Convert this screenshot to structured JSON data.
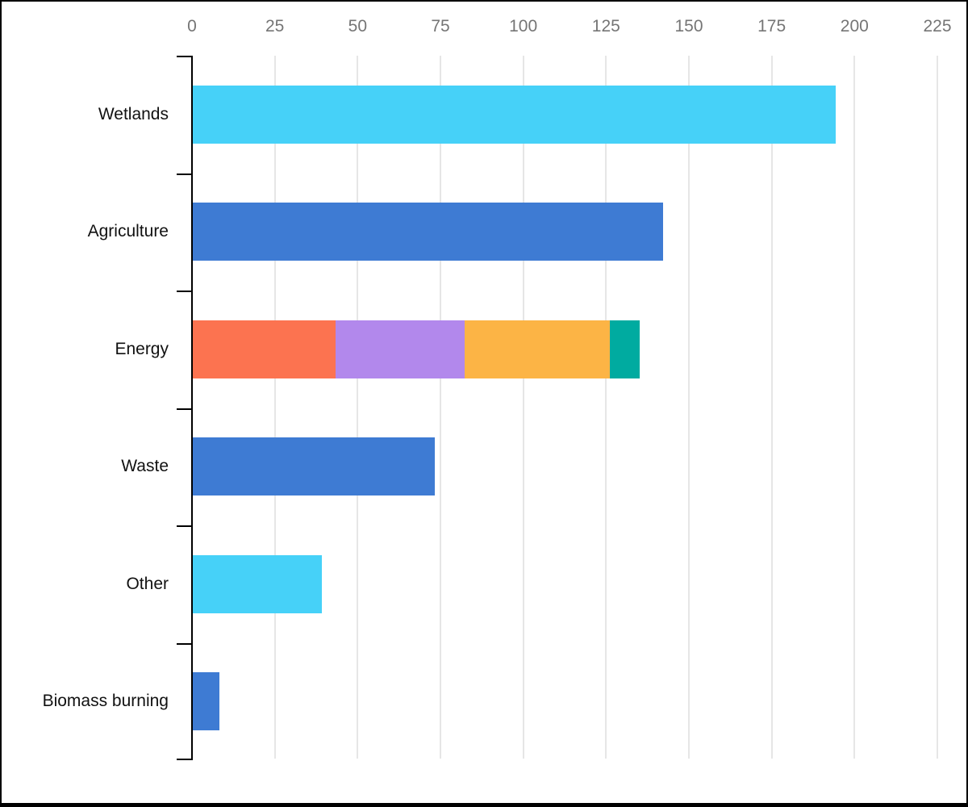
{
  "chart_data": {
    "type": "bar",
    "orientation": "horizontal",
    "title": "",
    "grid": true,
    "legend": false,
    "x_axis": {
      "position": "top",
      "min": 0,
      "max": 225,
      "tick_step": 25,
      "ticks": [
        0,
        25,
        50,
        75,
        100,
        125,
        150,
        175,
        200,
        225
      ]
    },
    "categories": [
      "Wetlands",
      "Agriculture",
      "Energy",
      "Waste",
      "Other",
      "Biomass burning"
    ],
    "bars": [
      {
        "category": "Wetlands",
        "total": 194,
        "segments": [
          {
            "name": "cyan-segment",
            "value": 194,
            "color": "#46d1f8"
          }
        ]
      },
      {
        "category": "Agriculture",
        "total": 142,
        "segments": [
          {
            "name": "blue-segment",
            "value": 142,
            "color": "#3e7bd3"
          }
        ]
      },
      {
        "category": "Energy",
        "total": 135,
        "segments": [
          {
            "name": "orange-segment",
            "value": 43,
            "color": "#fc7350"
          },
          {
            "name": "purple-segment",
            "value": 39,
            "color": "#b288ec"
          },
          {
            "name": "amber-segment",
            "value": 44,
            "color": "#fcb445"
          },
          {
            "name": "teal-segment",
            "value": 9,
            "color": "#00aba0"
          }
        ]
      },
      {
        "category": "Waste",
        "total": 73,
        "segments": [
          {
            "name": "blue-segment",
            "value": 73,
            "color": "#3e7bd3"
          }
        ]
      },
      {
        "category": "Other",
        "total": 39,
        "segments": [
          {
            "name": "cyan-segment",
            "value": 39,
            "color": "#46d1f8"
          }
        ]
      },
      {
        "category": "Biomass burning",
        "total": 8,
        "segments": [
          {
            "name": "blue-segment",
            "value": 8,
            "color": "#3e7bd3"
          }
        ]
      }
    ],
    "colors": {
      "axis_line": "#000000",
      "gridline": "#e6e6e6",
      "tick_label": "#757575",
      "category_label": "#111111",
      "background": "#ffffff",
      "frame_border": "#000000"
    }
  }
}
